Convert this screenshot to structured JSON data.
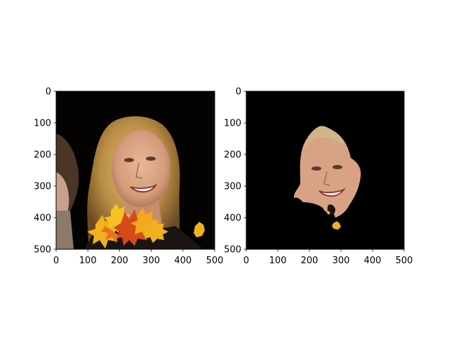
{
  "figure": {
    "panels": [
      {
        "id": "left",
        "image_description": "Photo crop: smiling woman with shoulder-length blonde hair on a dark background, autumn maple leaves overlaid near the bottom"
      },
      {
        "id": "right",
        "image_description": "Same face isolated by a segmentation mask; everything outside the face region is black"
      }
    ]
  },
  "colors": {
    "background": "#000000",
    "hair": "#c9a25a",
    "skin": "#d9a584",
    "leaf_yellow": "#f2b21d",
    "leaf_orange": "#e8731f",
    "leaf_red": "#d64a1a",
    "axis": "#000000"
  },
  "chart_data": [
    {
      "type": "image",
      "title": "",
      "xlabel": "",
      "ylabel": "",
      "xlim": [
        0,
        500
      ],
      "ylim": [
        500,
        0
      ],
      "x_ticks": [
        0,
        100,
        200,
        300,
        400,
        500
      ],
      "y_ticks": [
        0,
        100,
        200,
        300,
        400,
        500
      ],
      "x_tick_labels": [
        "0",
        "100",
        "200",
        "300",
        "400",
        "500"
      ],
      "y_tick_labels": [
        "0",
        "100",
        "200",
        "300",
        "400",
        "500"
      ]
    },
    {
      "type": "image",
      "title": "",
      "xlabel": "",
      "ylabel": "",
      "xlim": [
        0,
        500
      ],
      "ylim": [
        500,
        0
      ],
      "x_ticks": [
        0,
        100,
        200,
        300,
        400,
        500
      ],
      "y_ticks": [
        0,
        100,
        200,
        300,
        400,
        500
      ],
      "x_tick_labels": [
        "0",
        "100",
        "200",
        "300",
        "400",
        "500"
      ],
      "y_tick_labels": [
        "0",
        "100",
        "200",
        "300",
        "400",
        "500"
      ]
    }
  ]
}
